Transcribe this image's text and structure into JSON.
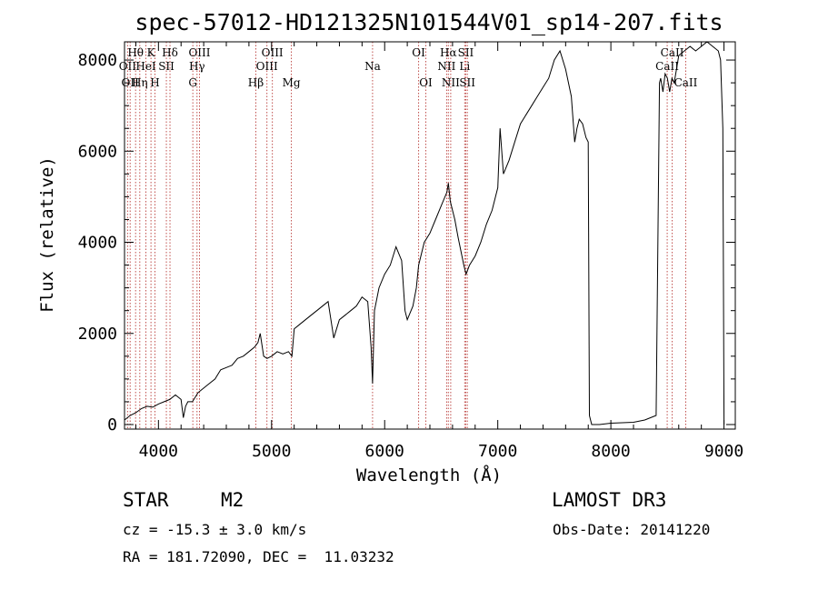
{
  "chart_data": {
    "type": "line",
    "title": "spec-57012-HD121325N101544V01_sp14-207.fits",
    "xlabel": "Wavelength (Å)",
    "ylabel": "Flux (relative)",
    "xlim": [
      3700,
      9100
    ],
    "ylim": [
      -100,
      8400
    ],
    "x_ticks": [
      4000,
      5000,
      6000,
      7000,
      8000,
      9000
    ],
    "y_ticks": [
      0,
      2000,
      4000,
      6000,
      8000
    ],
    "x_tick_labels": [
      "4000",
      "5000",
      "6000",
      "7000",
      "8000",
      "9000"
    ],
    "y_tick_labels": [
      "0",
      "2000",
      "4000",
      "6000",
      "8000"
    ],
    "grid": false,
    "series": [
      {
        "name": "flux",
        "x": [
          3700,
          3750,
          3800,
          3850,
          3900,
          3950,
          4000,
          4050,
          4100,
          4150,
          4200,
          4220,
          4240,
          4260,
          4300,
          4350,
          4400,
          4450,
          4500,
          4550,
          4600,
          4650,
          4700,
          4750,
          4800,
          4850,
          4880,
          4900,
          4930,
          4960,
          5000,
          5050,
          5100,
          5150,
          5180,
          5200,
          5250,
          5300,
          5350,
          5400,
          5450,
          5500,
          5550,
          5600,
          5650,
          5700,
          5750,
          5800,
          5850,
          5880,
          5893,
          5910,
          5950,
          6000,
          6050,
          6100,
          6150,
          6180,
          6200,
          6250,
          6280,
          6300,
          6350,
          6400,
          6450,
          6500,
          6550,
          6563,
          6580,
          6620,
          6650,
          6700,
          6720,
          6750,
          6800,
          6850,
          6900,
          6950,
          7000,
          7020,
          7050,
          7100,
          7150,
          7200,
          7250,
          7300,
          7350,
          7400,
          7450,
          7500,
          7550,
          7600,
          7650,
          7680,
          7700,
          7720,
          7750,
          7780,
          7800,
          7810,
          7830,
          7900,
          8000,
          8100,
          8200,
          8300,
          8400,
          8430,
          8440,
          8460,
          8480,
          8500,
          8520,
          8540,
          8560,
          8600,
          8650,
          8700,
          8750,
          8800,
          8850,
          8900,
          8950,
          8970,
          8990,
          9000
        ],
        "y": [
          100,
          200,
          260,
          350,
          400,
          380,
          450,
          500,
          550,
          650,
          550,
          150,
          400,
          500,
          500,
          700,
          800,
          900,
          1000,
          1200,
          1250,
          1300,
          1450,
          1500,
          1600,
          1700,
          1800,
          2000,
          1500,
          1450,
          1500,
          1600,
          1550,
          1600,
          1500,
          2100,
          2200,
          2300,
          2400,
          2500,
          2600,
          2700,
          1900,
          2300,
          2400,
          2500,
          2600,
          2800,
          2700,
          1700,
          900,
          2500,
          3000,
          3300,
          3500,
          3900,
          3600,
          2500,
          2300,
          2600,
          3000,
          3500,
          4000,
          4200,
          4500,
          4800,
          5100,
          5300,
          4900,
          4500,
          4100,
          3500,
          3300,
          3500,
          3700,
          4000,
          4400,
          4700,
          5200,
          6500,
          5500,
          5800,
          6200,
          6600,
          6800,
          7000,
          7200,
          7400,
          7600,
          8000,
          8200,
          7800,
          7200,
          6200,
          6500,
          6700,
          6600,
          6300,
          6200,
          200,
          0,
          0,
          30,
          40,
          50,
          100,
          200,
          7500,
          7600,
          7300,
          7700,
          7600,
          7300,
          7600,
          7500,
          8100,
          8200,
          8300,
          8200,
          8300,
          8400,
          8300,
          8200,
          8000,
          6500,
          0
        ]
      }
    ],
    "line_annotations": [
      {
        "wavelength": 3727,
        "label": "OII",
        "row": 2
      },
      {
        "wavelength": 3750,
        "label": "OII",
        "row": 3
      },
      {
        "wavelength": 3798,
        "label": "Hθ",
        "row": 1
      },
      {
        "wavelength": 3835,
        "label": "Hη",
        "row": 3
      },
      {
        "wavelength": 3889,
        "label": "HeI",
        "row": 2
      },
      {
        "wavelength": 3934,
        "label": "K",
        "row": 1
      },
      {
        "wavelength": 3969,
        "label": "H",
        "row": 3
      },
      {
        "wavelength": 4070,
        "label": "SII",
        "row": 2
      },
      {
        "wavelength": 4102,
        "label": "Hδ",
        "row": 1
      },
      {
        "wavelength": 4304,
        "label": "G",
        "row": 3
      },
      {
        "wavelength": 4341,
        "label": "Hγ",
        "row": 2
      },
      {
        "wavelength": 4363,
        "label": "OIII",
        "row": 1
      },
      {
        "wavelength": 4861,
        "label": "Hβ",
        "row": 3
      },
      {
        "wavelength": 4959,
        "label": "OIII",
        "row": 2
      },
      {
        "wavelength": 5007,
        "label": "OIII",
        "row": 1
      },
      {
        "wavelength": 5175,
        "label": "Mg",
        "row": 3
      },
      {
        "wavelength": 5893,
        "label": "Na",
        "row": 2
      },
      {
        "wavelength": 6300,
        "label": "OI",
        "row": 1
      },
      {
        "wavelength": 6364,
        "label": "OI",
        "row": 3
      },
      {
        "wavelength": 6548,
        "label": "NII",
        "row": 2
      },
      {
        "wavelength": 6563,
        "label": "Hα",
        "row": 1
      },
      {
        "wavelength": 6584,
        "label": "NII",
        "row": 3
      },
      {
        "wavelength": 6708,
        "label": "Li",
        "row": 2
      },
      {
        "wavelength": 6717,
        "label": "SII",
        "row": 1
      },
      {
        "wavelength": 6731,
        "label": "SII",
        "row": 3
      },
      {
        "wavelength": 8498,
        "label": "CaII",
        "row": 2
      },
      {
        "wavelength": 8542,
        "label": "CaII",
        "row": 1
      },
      {
        "wavelength": 8662,
        "label": "CaII",
        "row": 3
      }
    ],
    "colors": {
      "line": "#000000",
      "marker": "#c0504d"
    }
  },
  "info": {
    "object_class": "STAR",
    "subclass": "M2",
    "survey": "LAMOST DR3",
    "redshift": "cz = -15.3 ± 3.0 km/s",
    "obs_date": "Obs-Date: 20141220",
    "coords": "RA = 181.72090, DEC =  11.03232"
  }
}
